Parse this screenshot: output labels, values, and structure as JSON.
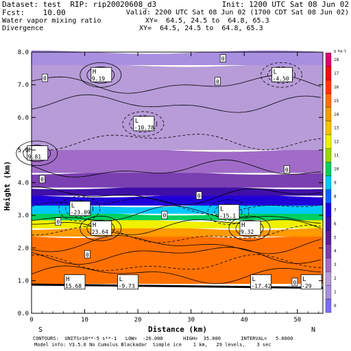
{
  "header": {
    "line1_left": "Dataset: test  RIP: rip20020608_d3",
    "line1_right": "Init: 1200 UTC Sat 08 Jun 02",
    "line2_left": "Fcst:    10.00",
    "line2_right": "Valid: 2200 UTC Sat 08 Jun 02 (1700 CDT Sat 08 Jun 02)",
    "line3_left": "Water vapor mixing ratio",
    "line3_right": "XY=  64.5, 24.5 to  64.8, 65.3",
    "line4_left": "Divergence",
    "line4_right": "XY=  64.5, 24.5 to  64.8, 65.3"
  },
  "footer": {
    "line1": "CONTOURS:  UNITS=10**-5 s**-1   LOW=  -26.000       HIGH=  35.000       INTERVAL=   5.0000",
    "line2": "Model info: V3.5.0 No Cumulus Blackadar  Simple ice    1 km,   29 levels,    3 sec"
  },
  "chart_data": {
    "type": "heatmap",
    "title": "Water vapor mixing ratio / Divergence",
    "xlabel": "Distance (km)",
    "ylabel": "Height (km)",
    "xlim": [
      0,
      54.8
    ],
    "ylim": [
      0,
      8
    ],
    "x_ticks": [
      0,
      10,
      20,
      30,
      40,
      50
    ],
    "y_ticks": [
      "0.0",
      "1.0",
      "2.0",
      "3.0",
      "4.0",
      "5.0",
      "6.0",
      "7.0",
      "8.0"
    ],
    "left_endpoint_label": "S",
    "right_endpoint_label": "N",
    "colorbar": {
      "units": "g kg-1",
      "labels": [
        "0",
        "1",
        "2",
        "3",
        "4",
        "5",
        "6",
        "7",
        "8",
        "9",
        "10",
        "11",
        "12",
        "13",
        "14",
        "15",
        "16",
        "17",
        "18"
      ],
      "colors": [
        "#7a6cff",
        "#a98fe0",
        "#b79cd8",
        "#a06cc7",
        "#7a3fb0",
        "#5c1f9a",
        "#3f10a8",
        "#1f00d8",
        "#0066ff",
        "#00c8ff",
        "#00d060",
        "#9ad800",
        "#f0f000",
        "#ffc000",
        "#ff9a00",
        "#ff7000",
        "#ff3800",
        "#e81010",
        "#d8006e"
      ]
    },
    "moisture_layers": [
      {
        "z_bottom": 0.0,
        "z_top": 0.9,
        "value": null
      },
      {
        "z_bottom": 0.9,
        "z_top": 2.35,
        "value": 14.5
      },
      {
        "z_bottom": 2.35,
        "z_top": 2.6,
        "value": 13.5
      },
      {
        "z_bottom": 2.6,
        "z_top": 2.85,
        "value": 11.5
      },
      {
        "z_bottom": 2.85,
        "z_top": 3.05,
        "value": 9.5
      },
      {
        "z_bottom": 3.05,
        "z_top": 3.3,
        "value": 8.5
      },
      {
        "z_bottom": 3.3,
        "z_top": 3.6,
        "value": 7
      },
      {
        "z_bottom": 3.6,
        "z_top": 3.85,
        "value": 5.5
      },
      {
        "z_bottom": 3.85,
        "z_top": 4.3,
        "value": 4
      },
      {
        "z_bottom": 4.3,
        "z_top": 5.0,
        "value": 2.5
      },
      {
        "z_bottom": 5.0,
        "z_top": 7.6,
        "value": 1.5
      },
      {
        "z_bottom": 7.6,
        "z_top": 8.0,
        "value": 0.5
      }
    ],
    "extrema_labels": [
      {
        "type": "H",
        "value": "9.19",
        "x": 13.0,
        "y": 7.3
      },
      {
        "type": "L",
        "value": "-4.50",
        "x": 47.0,
        "y": 7.3
      },
      {
        "type": "L",
        "value": "-10.78",
        "x": 21.0,
        "y": 5.8
      },
      {
        "type": "H",
        "value": "9.81",
        "x": 1.0,
        "y": 4.9
      },
      {
        "type": "L",
        "value": "-23.09",
        "x": 9.0,
        "y": 3.2
      },
      {
        "type": "L",
        "value": "-15.1",
        "x": 37.0,
        "y": 3.1
      },
      {
        "type": "H",
        "value": "23.64",
        "x": 13.0,
        "y": 2.6
      },
      {
        "type": "H",
        "value": "9.32",
        "x": 41.0,
        "y": 2.6
      },
      {
        "type": "H",
        "value": "15.68",
        "x": 8.0,
        "y": 0.95
      },
      {
        "type": "L",
        "value": "-9.73",
        "x": 18.0,
        "y": 0.95
      },
      {
        "type": "L",
        "value": "-17.42",
        "x": 43.0,
        "y": 0.95
      },
      {
        "type": "L",
        "value": "-29",
        "x": 52.5,
        "y": 0.95
      }
    ],
    "zero_labels": [
      {
        "x": 2.5,
        "y": 7.2
      },
      {
        "x": 36.0,
        "y": 7.8
      },
      {
        "x": 35.0,
        "y": 7.1
      },
      {
        "x": 48.0,
        "y": 4.4
      },
      {
        "x": 2.0,
        "y": 4.1
      },
      {
        "x": 31.5,
        "y": 3.6
      },
      {
        "x": 5.0,
        "y": 2.8
      },
      {
        "x": 25.0,
        "y": 3.0
      },
      {
        "x": 10.5,
        "y": 1.8
      },
      {
        "x": 49.5,
        "y": 0.95
      }
    ]
  }
}
